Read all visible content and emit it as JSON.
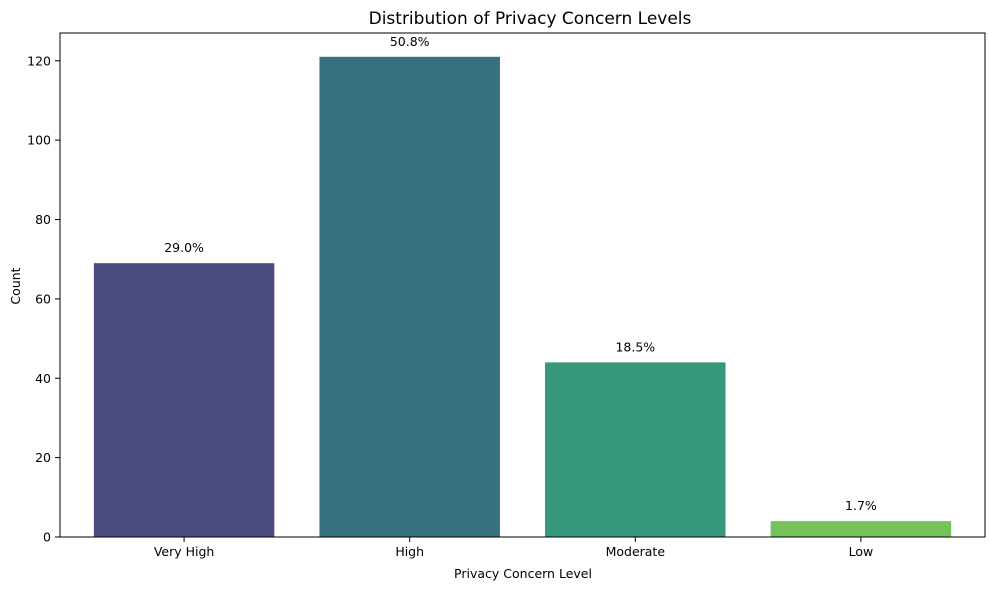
{
  "chart_data": {
    "type": "bar",
    "title": "Distribution of Privacy Concern Levels",
    "xlabel": "Privacy Concern Level",
    "ylabel": "Count",
    "categories": [
      "Very High",
      "High",
      "Moderate",
      "Low"
    ],
    "values": [
      69,
      121,
      44,
      4
    ],
    "data_labels": [
      "29.0%",
      "50.8%",
      "18.5%",
      "1.7%"
    ],
    "colors": [
      "#4a4c7f",
      "#36717f",
      "#35977b",
      "#75c15a"
    ],
    "ylim": [
      0,
      127
    ],
    "yticks": [
      0,
      20,
      40,
      60,
      80,
      100,
      120
    ],
    "grid": false,
    "legend": "none"
  }
}
